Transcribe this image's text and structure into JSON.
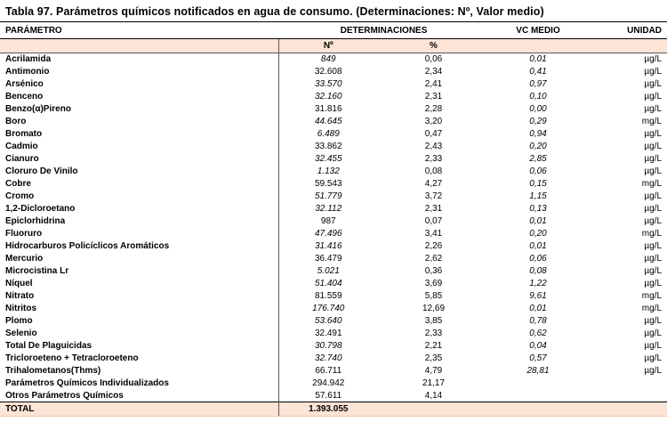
{
  "title": "Tabla 97. Parámetros químicos notificados en agua de consumo. (Determinaciones: Nº, Valor medio)",
  "colors": {
    "band_background": "#fce4d6",
    "border_dark": "#000000",
    "divider_gray": "#595959",
    "text": "#000000"
  },
  "table": {
    "headers": {
      "parametro": "PARÁMETRO",
      "determinaciones": "DETERMINACIONES",
      "vc_medio": "VC MEDIO",
      "unidad": "UNIDAD",
      "num": "Nº",
      "pct": "%"
    },
    "rows": [
      {
        "parametro": "Acrilamida",
        "num": "849",
        "num_italic": true,
        "pct": "0,06",
        "vc": "0,01",
        "unidad": "µg/L"
      },
      {
        "parametro": "Antimonio",
        "num": "32.608",
        "num_italic": false,
        "pct": "2,34",
        "vc": "0,41",
        "unidad": "µg/L"
      },
      {
        "parametro": "Arsénico",
        "num": "33.570",
        "num_italic": true,
        "pct": "2,41",
        "vc": "0,97",
        "unidad": "µg/L"
      },
      {
        "parametro": "Benceno",
        "num": "32.160",
        "num_italic": true,
        "pct": "2,31",
        "vc": "0,10",
        "unidad": "µg/L"
      },
      {
        "parametro": "Benzo(α)Pireno",
        "num": "31.816",
        "num_italic": false,
        "pct": "2,28",
        "vc": "0,00",
        "unidad": "µg/L"
      },
      {
        "parametro": "Boro",
        "num": "44.645",
        "num_italic": true,
        "pct": "3,20",
        "vc": "0,29",
        "unidad": "mg/L"
      },
      {
        "parametro": "Bromato",
        "num": "6.489",
        "num_italic": true,
        "pct": "0,47",
        "vc": "0,94",
        "unidad": "µg/L"
      },
      {
        "parametro": "Cadmio",
        "num": "33.862",
        "num_italic": false,
        "pct": "2,43",
        "vc": "0,20",
        "unidad": "µg/L"
      },
      {
        "parametro": "Cianuro",
        "num": "32.455",
        "num_italic": true,
        "pct": "2,33",
        "vc": "2,85",
        "unidad": "µg/L"
      },
      {
        "parametro": "Cloruro De Vinilo",
        "num": "1.132",
        "num_italic": true,
        "pct": "0,08",
        "vc": "0,06",
        "unidad": "µg/L"
      },
      {
        "parametro": "Cobre",
        "num": "59.543",
        "num_italic": false,
        "pct": "4,27",
        "vc": "0,15",
        "unidad": "mg/L"
      },
      {
        "parametro": "Cromo",
        "num": "51.779",
        "num_italic": true,
        "pct": "3,72",
        "vc": "1,15",
        "unidad": "µg/L"
      },
      {
        "parametro": "1,2-Dicloroetano",
        "num": "32.112",
        "num_italic": true,
        "pct": "2,31",
        "vc": "0,13",
        "unidad": "µg/L"
      },
      {
        "parametro": "Epiclorhidrina",
        "num": "987",
        "num_italic": false,
        "pct": "0,07",
        "vc": "0,01",
        "unidad": "µg/L"
      },
      {
        "parametro": "Fluoruro",
        "num": "47.496",
        "num_italic": true,
        "pct": "3,41",
        "vc": "0,20",
        "unidad": "mg/L"
      },
      {
        "parametro": "Hidrocarburos Policíclicos Aromáticos",
        "num": "31.416",
        "num_italic": true,
        "pct": "2,26",
        "vc": "0,01",
        "unidad": "µg/L"
      },
      {
        "parametro": "Mercurio",
        "num": "36.479",
        "num_italic": false,
        "pct": "2,62",
        "vc": "0,06",
        "unidad": "µg/L"
      },
      {
        "parametro": "Microcistina Lr",
        "num": "5.021",
        "num_italic": true,
        "pct": "0,36",
        "vc": "0,08",
        "unidad": "µg/L"
      },
      {
        "parametro": "Níquel",
        "num": "51.404",
        "num_italic": true,
        "pct": "3,69",
        "vc": "1,22",
        "unidad": "µg/L"
      },
      {
        "parametro": "Nitrato",
        "num": "81.559",
        "num_italic": false,
        "pct": "5,85",
        "vc": "9,61",
        "unidad": "mg/L"
      },
      {
        "parametro": "Nitritos",
        "num": "176.740",
        "num_italic": true,
        "pct": "12,69",
        "vc": "0,01",
        "unidad": "mg/L"
      },
      {
        "parametro": "Plomo",
        "num": "53.640",
        "num_italic": true,
        "pct": "3,85",
        "vc": "0,78",
        "unidad": "µg/L"
      },
      {
        "parametro": "Selenio",
        "num": "32.491",
        "num_italic": false,
        "pct": "2,33",
        "vc": "0,62",
        "unidad": "µg/L"
      },
      {
        "parametro": "Total De Plaguicidas",
        "num": "30.798",
        "num_italic": true,
        "pct": "2,21",
        "vc": "0,04",
        "unidad": "µg/L"
      },
      {
        "parametro": "Tricloroeteno + Tetracloroeteno",
        "num": "32.740",
        "num_italic": true,
        "pct": "2,35",
        "vc": "0,57",
        "unidad": "µg/L"
      },
      {
        "parametro": "Trihalometanos(Thms)",
        "num": "66.711",
        "num_italic": false,
        "pct": "4,79",
        "vc": "28,81",
        "unidad": "µg/L"
      },
      {
        "parametro": "Parámetros Químicos Individualizados",
        "num": "294.942",
        "num_italic": false,
        "pct": "21,17",
        "vc": "",
        "unidad": ""
      },
      {
        "parametro": "Otros Parámetros Químicos",
        "num": "57.611",
        "num_italic": false,
        "pct": "4,14",
        "vc": "",
        "unidad": ""
      }
    ],
    "total": {
      "label": "TOTAL",
      "num": "1.393.055",
      "pct": "",
      "vc": "",
      "unidad": ""
    }
  }
}
